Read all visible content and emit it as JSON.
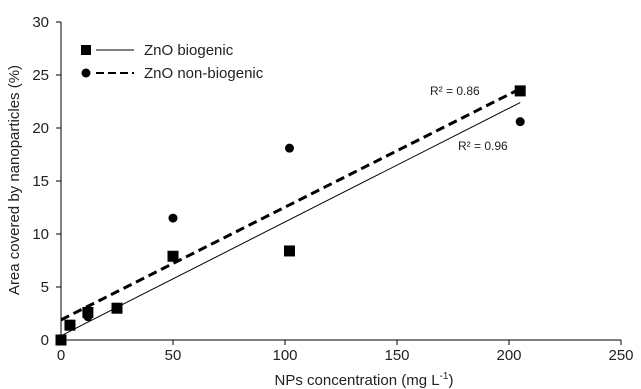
{
  "chart_data": {
    "type": "scatter",
    "xlabel": "NPs concentration (mg L",
    "xlabel_sup": "-1",
    "xlabel_close": ")",
    "ylabel": "Area covered by nanoparticles (%)",
    "xlim": [
      0,
      250
    ],
    "ylim": [
      0,
      30
    ],
    "xticks": [
      0,
      50,
      100,
      150,
      200,
      250
    ],
    "yticks": [
      0,
      5,
      10,
      15,
      20,
      25,
      30
    ],
    "grid": false,
    "legend_position": "top-left",
    "series": [
      {
        "name": "ZnO biogenic",
        "marker": "square",
        "line": "solid",
        "color": "#000000",
        "x": [
          0,
          4,
          12,
          25,
          50,
          102,
          205
        ],
        "y": [
          0.0,
          1.4,
          2.6,
          3.0,
          7.9,
          8.4,
          23.5
        ],
        "fit": {
          "x": [
            0,
            205
          ],
          "y": [
            0.4,
            22.4
          ]
        },
        "r2_label": "R² = 0.96"
      },
      {
        "name": "ZnO non-biogenic",
        "marker": "circle",
        "line": "dashed",
        "color": "#000000",
        "x": [
          0,
          4,
          12,
          25,
          50,
          102,
          205
        ],
        "y": [
          0.1,
          1.3,
          2.2,
          3.0,
          11.5,
          18.1,
          20.6
        ],
        "fit": {
          "x": [
            0,
            205
          ],
          "y": [
            1.9,
            23.7
          ]
        },
        "r2_label": "R² = 0.86"
      }
    ]
  }
}
